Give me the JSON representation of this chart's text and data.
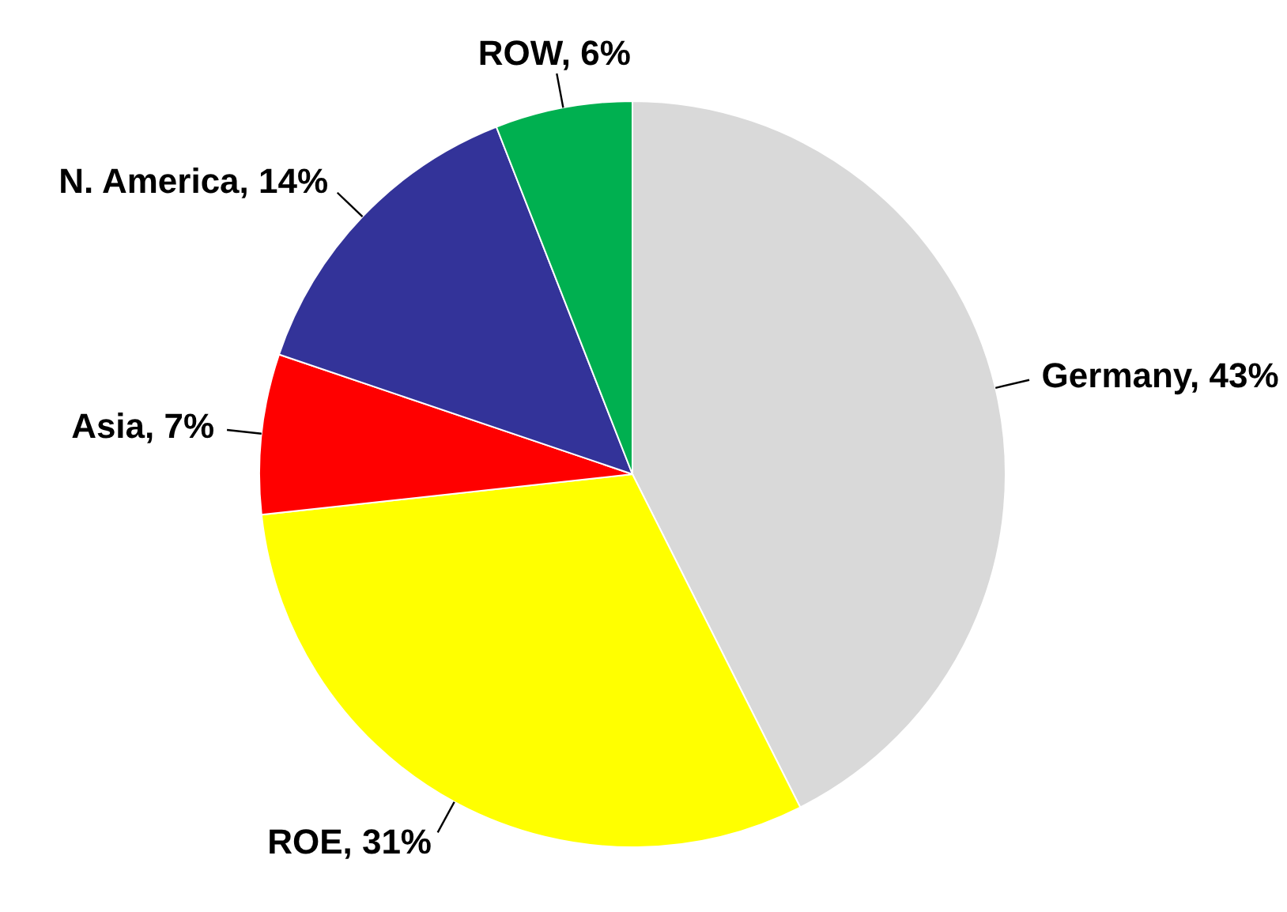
{
  "chart_data": {
    "type": "pie",
    "categories": [
      "Germany",
      "ROE",
      "Asia",
      "N. America",
      "ROW"
    ],
    "values": [
      43,
      31,
      7,
      14,
      6
    ],
    "value_labels": [
      "43%",
      "31%",
      "7%",
      "14%",
      "6%"
    ],
    "colors": [
      "#d9d9d9",
      "#ffff00",
      "#ff0000",
      "#333399",
      "#00b050"
    ]
  }
}
